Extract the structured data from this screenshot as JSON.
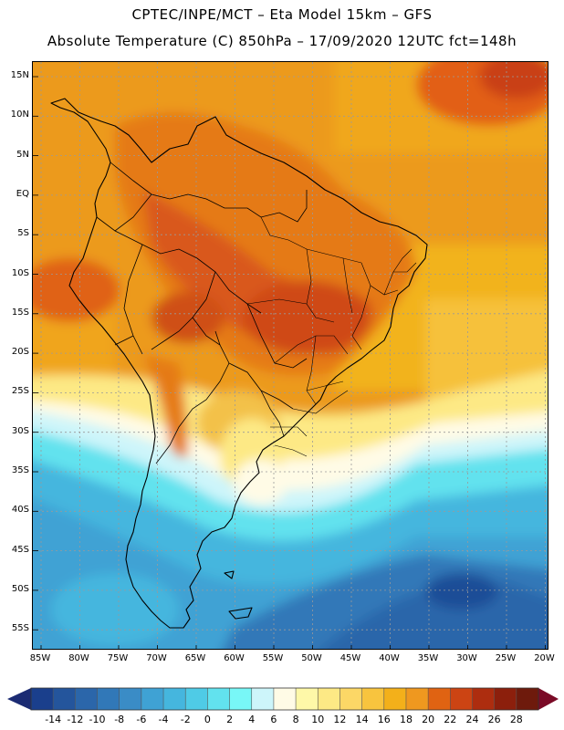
{
  "header": {
    "title_line1": "CPTEC/INPE/MCT –  Eta Model 15km – GFS",
    "title_line2": "Absolute Temperature (C) 850hPa – 17/09/2020 12UTC fct=148h"
  },
  "map": {
    "lat_labels": [
      "15N",
      "10N",
      "5N",
      "EQ",
      "5S",
      "10S",
      "15S",
      "20S",
      "25S",
      "30S",
      "35S",
      "40S",
      "45S",
      "50S",
      "55S"
    ],
    "lon_labels": [
      "85W",
      "80W",
      "75W",
      "70W",
      "65W",
      "60W",
      "55W",
      "50W",
      "45W",
      "40W",
      "35W",
      "30W",
      "25W",
      "20W"
    ],
    "lat_values": [
      15,
      10,
      5,
      0,
      -5,
      -10,
      -15,
      -20,
      -25,
      -30,
      -35,
      -40,
      -45,
      -50,
      -55
    ],
    "lon_values": [
      -85,
      -80,
      -75,
      -70,
      -65,
      -60,
      -55,
      -50,
      -45,
      -40,
      -35,
      -30,
      -25,
      -20
    ]
  },
  "colorbar": {
    "labels": [
      "-14",
      "-12",
      "-10",
      "-8",
      "-6",
      "-4",
      "-2",
      "0",
      "2",
      "4",
      "6",
      "8",
      "10",
      "12",
      "14",
      "16",
      "18",
      "20",
      "22",
      "24",
      "26",
      "28"
    ],
    "colors": [
      "#1a3f8c",
      "#24559c",
      "#2b66aa",
      "#3178b8",
      "#3a8cc6",
      "#3fa2d4",
      "#45b6de",
      "#4fcbe6",
      "#62e2ee",
      "#78f7f7",
      "#cdf5fa",
      "#fffbe6",
      "#fef8a8",
      "#fde985",
      "#fcd766",
      "#f8c43e",
      "#f3b01a",
      "#ef981f",
      "#e06312",
      "#cc4413",
      "#ad2d0f",
      "#8c1f0c",
      "#6e1a0c"
    ],
    "arrow_low": "#1b2b73",
    "arrow_high": "#7a0a26"
  }
}
